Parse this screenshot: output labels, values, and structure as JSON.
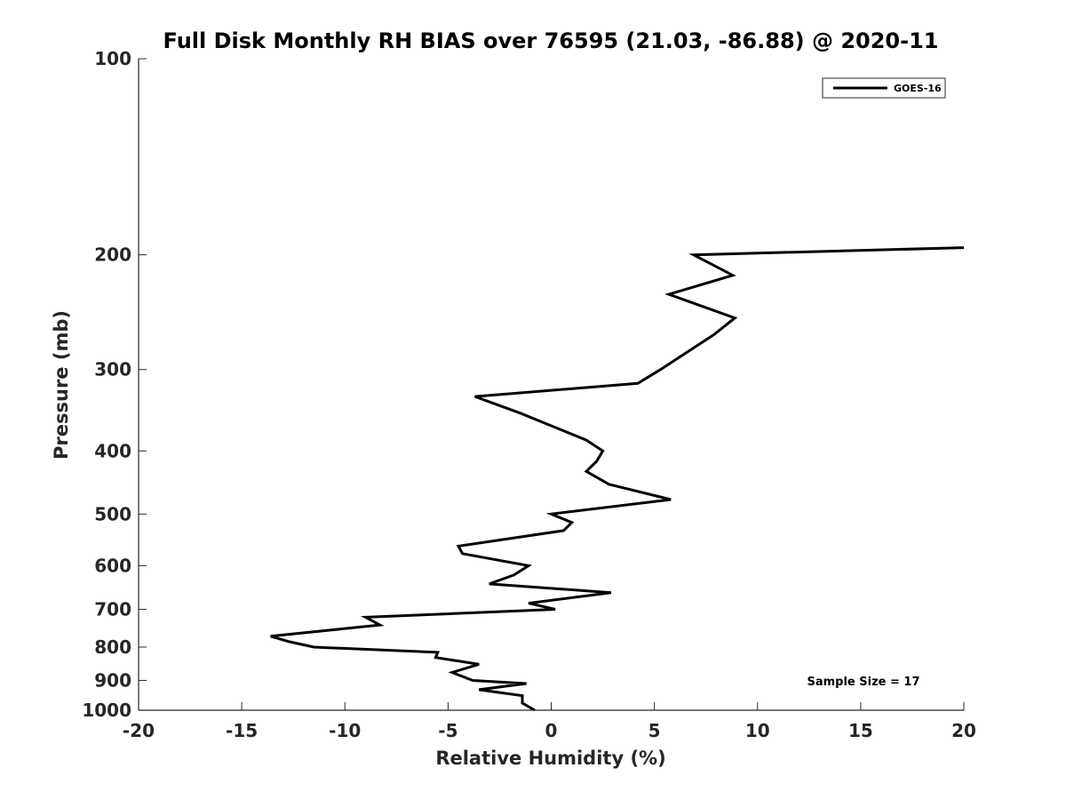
{
  "chart_data": {
    "type": "line",
    "title": "Full Disk Monthly RH BIAS over 76595 (21.03, -86.88) @ 2020-11",
    "xlabel": "Relative Humidity (%)",
    "ylabel": "Pressure (mb)",
    "xlim": [
      -20,
      20
    ],
    "ylim": [
      1000,
      100
    ],
    "yscale": "log",
    "y_reversed": true,
    "xticks": [
      -20,
      -15,
      -10,
      -5,
      0,
      5,
      10,
      15,
      20
    ],
    "xtick_labels": [
      "-20",
      "-15",
      "-10",
      "-5",
      "0",
      "5",
      "10",
      "15",
      "20"
    ],
    "yticks": [
      100,
      200,
      300,
      400,
      500,
      600,
      700,
      800,
      900,
      1000
    ],
    "ytick_labels": [
      "100",
      "200",
      "300",
      "400",
      "500",
      "600",
      "700",
      "800",
      "900",
      "1000"
    ],
    "grid": false,
    "legend_position": "top-right",
    "annotation": "Sample Size = 17",
    "series": [
      {
        "name": "GOES-16",
        "color": "#000000",
        "points": [
          {
            "x": 20.0,
            "y": 195
          },
          {
            "x": 6.9,
            "y": 200
          },
          {
            "x": 8.8,
            "y": 215
          },
          {
            "x": 5.7,
            "y": 230
          },
          {
            "x": 8.9,
            "y": 250
          },
          {
            "x": 7.9,
            "y": 265
          },
          {
            "x": 5.3,
            "y": 300
          },
          {
            "x": 4.2,
            "y": 315
          },
          {
            "x": -3.7,
            "y": 330
          },
          {
            "x": -1.5,
            "y": 350
          },
          {
            "x": 1.7,
            "y": 385
          },
          {
            "x": 2.5,
            "y": 400
          },
          {
            "x": 2.2,
            "y": 415
          },
          {
            "x": 1.7,
            "y": 430
          },
          {
            "x": 2.8,
            "y": 450
          },
          {
            "x": 5.8,
            "y": 475
          },
          {
            "x": 0.0,
            "y": 500
          },
          {
            "x": 1.0,
            "y": 515
          },
          {
            "x": 0.6,
            "y": 530
          },
          {
            "x": -4.5,
            "y": 560
          },
          {
            "x": -4.3,
            "y": 575
          },
          {
            "x": -1.1,
            "y": 600
          },
          {
            "x": -1.8,
            "y": 620
          },
          {
            "x": -3.0,
            "y": 640
          },
          {
            "x": 2.9,
            "y": 660
          },
          {
            "x": -1.1,
            "y": 685
          },
          {
            "x": 0.2,
            "y": 700
          },
          {
            "x": -9.0,
            "y": 720
          },
          {
            "x": -8.3,
            "y": 740
          },
          {
            "x": -13.6,
            "y": 770
          },
          {
            "x": -12.7,
            "y": 785
          },
          {
            "x": -11.5,
            "y": 800
          },
          {
            "x": -5.5,
            "y": 815
          },
          {
            "x": -5.6,
            "y": 830
          },
          {
            "x": -3.5,
            "y": 850
          },
          {
            "x": -4.8,
            "y": 875
          },
          {
            "x": -3.8,
            "y": 900
          },
          {
            "x": -1.2,
            "y": 910
          },
          {
            "x": -3.5,
            "y": 930
          },
          {
            "x": -1.4,
            "y": 950
          },
          {
            "x": -1.4,
            "y": 975
          },
          {
            "x": -0.8,
            "y": 1000
          }
        ]
      }
    ]
  }
}
